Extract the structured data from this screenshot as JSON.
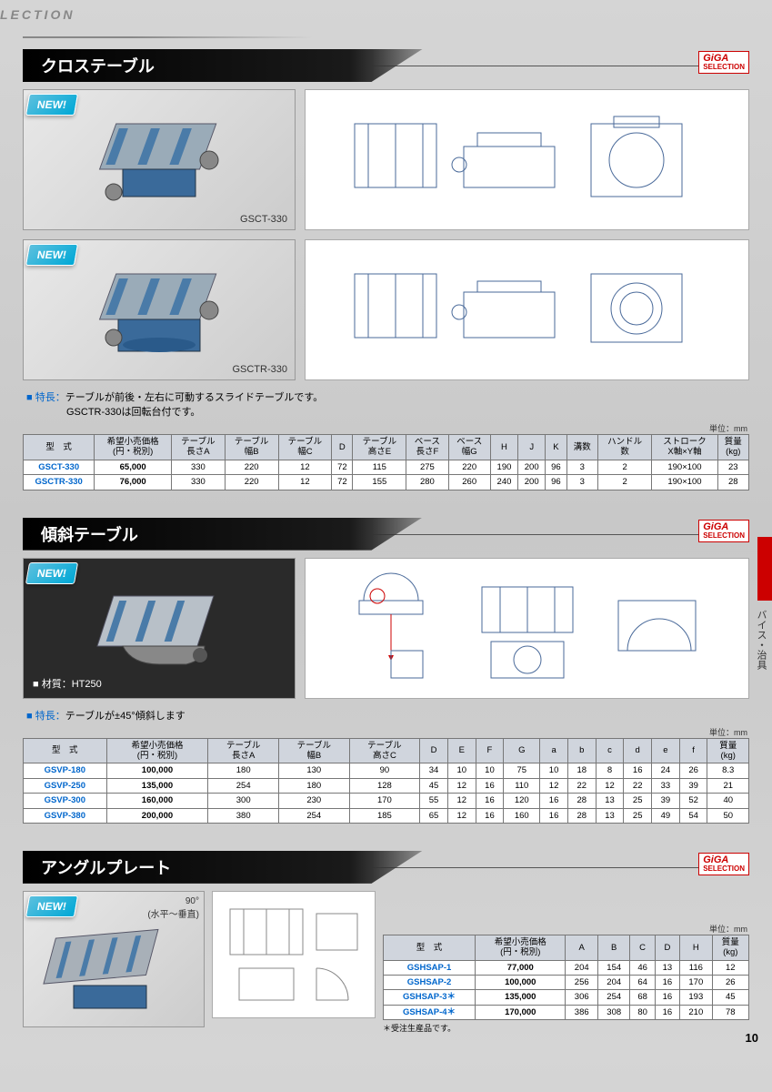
{
  "page": {
    "top_label": "LECTION",
    "page_number": "10",
    "side_label": "バイス・治具"
  },
  "giga": {
    "brand": "GiGA",
    "sub": "SELECTION"
  },
  "new_label": "NEW!",
  "unit_text": "単位：mm",
  "section1": {
    "title": "クロステーブル",
    "products": [
      {
        "label": "GSCT-330"
      },
      {
        "label": "GSCTR-330"
      }
    ],
    "feature_prefix": "■ 特長：",
    "feature_text": "テーブルが前後・左右に可動するスライドテーブルです。\nGSCTR-330は回転台付です。",
    "table": {
      "columns": [
        "型　式",
        "希望小売価格\n(円・税別)",
        "テーブル\n長さA",
        "テーブル\n幅B",
        "テーブル\n幅C",
        "D",
        "テーブル\n高さE",
        "ベース\n長さF",
        "ベース\n幅G",
        "H",
        "J",
        "K",
        "溝数",
        "ハンドル\n数",
        "ストローク\nX軸×Y軸",
        "質量\n(kg)"
      ],
      "rows": [
        [
          "GSCT-330",
          "65,000",
          "330",
          "220",
          "12",
          "72",
          "115",
          "275",
          "220",
          "190",
          "200",
          "96",
          "3",
          "2",
          "190×100",
          "23"
        ],
        [
          "GSCTR-330",
          "76,000",
          "330",
          "220",
          "12",
          "72",
          "155",
          "280",
          "260",
          "240",
          "200",
          "96",
          "3",
          "2",
          "190×100",
          "28"
        ]
      ]
    }
  },
  "section2": {
    "title": "傾斜テーブル",
    "material_label": "■ 材質：HT250",
    "feature_prefix": "■ 特長：",
    "feature_text": "テーブルが±45°傾斜します",
    "table": {
      "columns": [
        "型　式",
        "希望小売価格\n(円・税別)",
        "テーブル\n長さA",
        "テーブル\n幅B",
        "テーブル\n高さC",
        "D",
        "E",
        "F",
        "G",
        "a",
        "b",
        "c",
        "d",
        "e",
        "f",
        "質量\n(kg)"
      ],
      "rows": [
        [
          "GSVP-180",
          "100,000",
          "180",
          "130",
          "90",
          "34",
          "10",
          "10",
          "75",
          "10",
          "18",
          "8",
          "16",
          "24",
          "26",
          "8.3"
        ],
        [
          "GSVP-250",
          "135,000",
          "254",
          "180",
          "128",
          "45",
          "12",
          "16",
          "110",
          "12",
          "22",
          "12",
          "22",
          "33",
          "39",
          "21"
        ],
        [
          "GSVP-300",
          "160,000",
          "300",
          "230",
          "170",
          "55",
          "12",
          "16",
          "120",
          "16",
          "28",
          "13",
          "25",
          "39",
          "52",
          "40"
        ],
        [
          "GSVP-380",
          "200,000",
          "380",
          "254",
          "185",
          "65",
          "12",
          "16",
          "160",
          "16",
          "28",
          "13",
          "25",
          "49",
          "54",
          "50"
        ]
      ]
    }
  },
  "section3": {
    "title": "アングルプレート",
    "angle_note": "90°\n(水平～垂直)",
    "footnote": "＊受注生産品です。",
    "table": {
      "columns": [
        "型　式",
        "希望小売価格\n(円・税別)",
        "A",
        "B",
        "C",
        "D",
        "H",
        "質量\n(kg)"
      ],
      "rows": [
        [
          "GSHSAP-1",
          "77,000",
          "204",
          "154",
          "46",
          "13",
          "116",
          "12"
        ],
        [
          "GSHSAP-2",
          "100,000",
          "256",
          "204",
          "64",
          "16",
          "170",
          "26"
        ],
        [
          "GSHSAP-3＊",
          "135,000",
          "306",
          "254",
          "68",
          "16",
          "193",
          "45"
        ],
        [
          "GSHSAP-4＊",
          "170,000",
          "386",
          "308",
          "80",
          "16",
          "210",
          "78"
        ]
      ]
    }
  }
}
